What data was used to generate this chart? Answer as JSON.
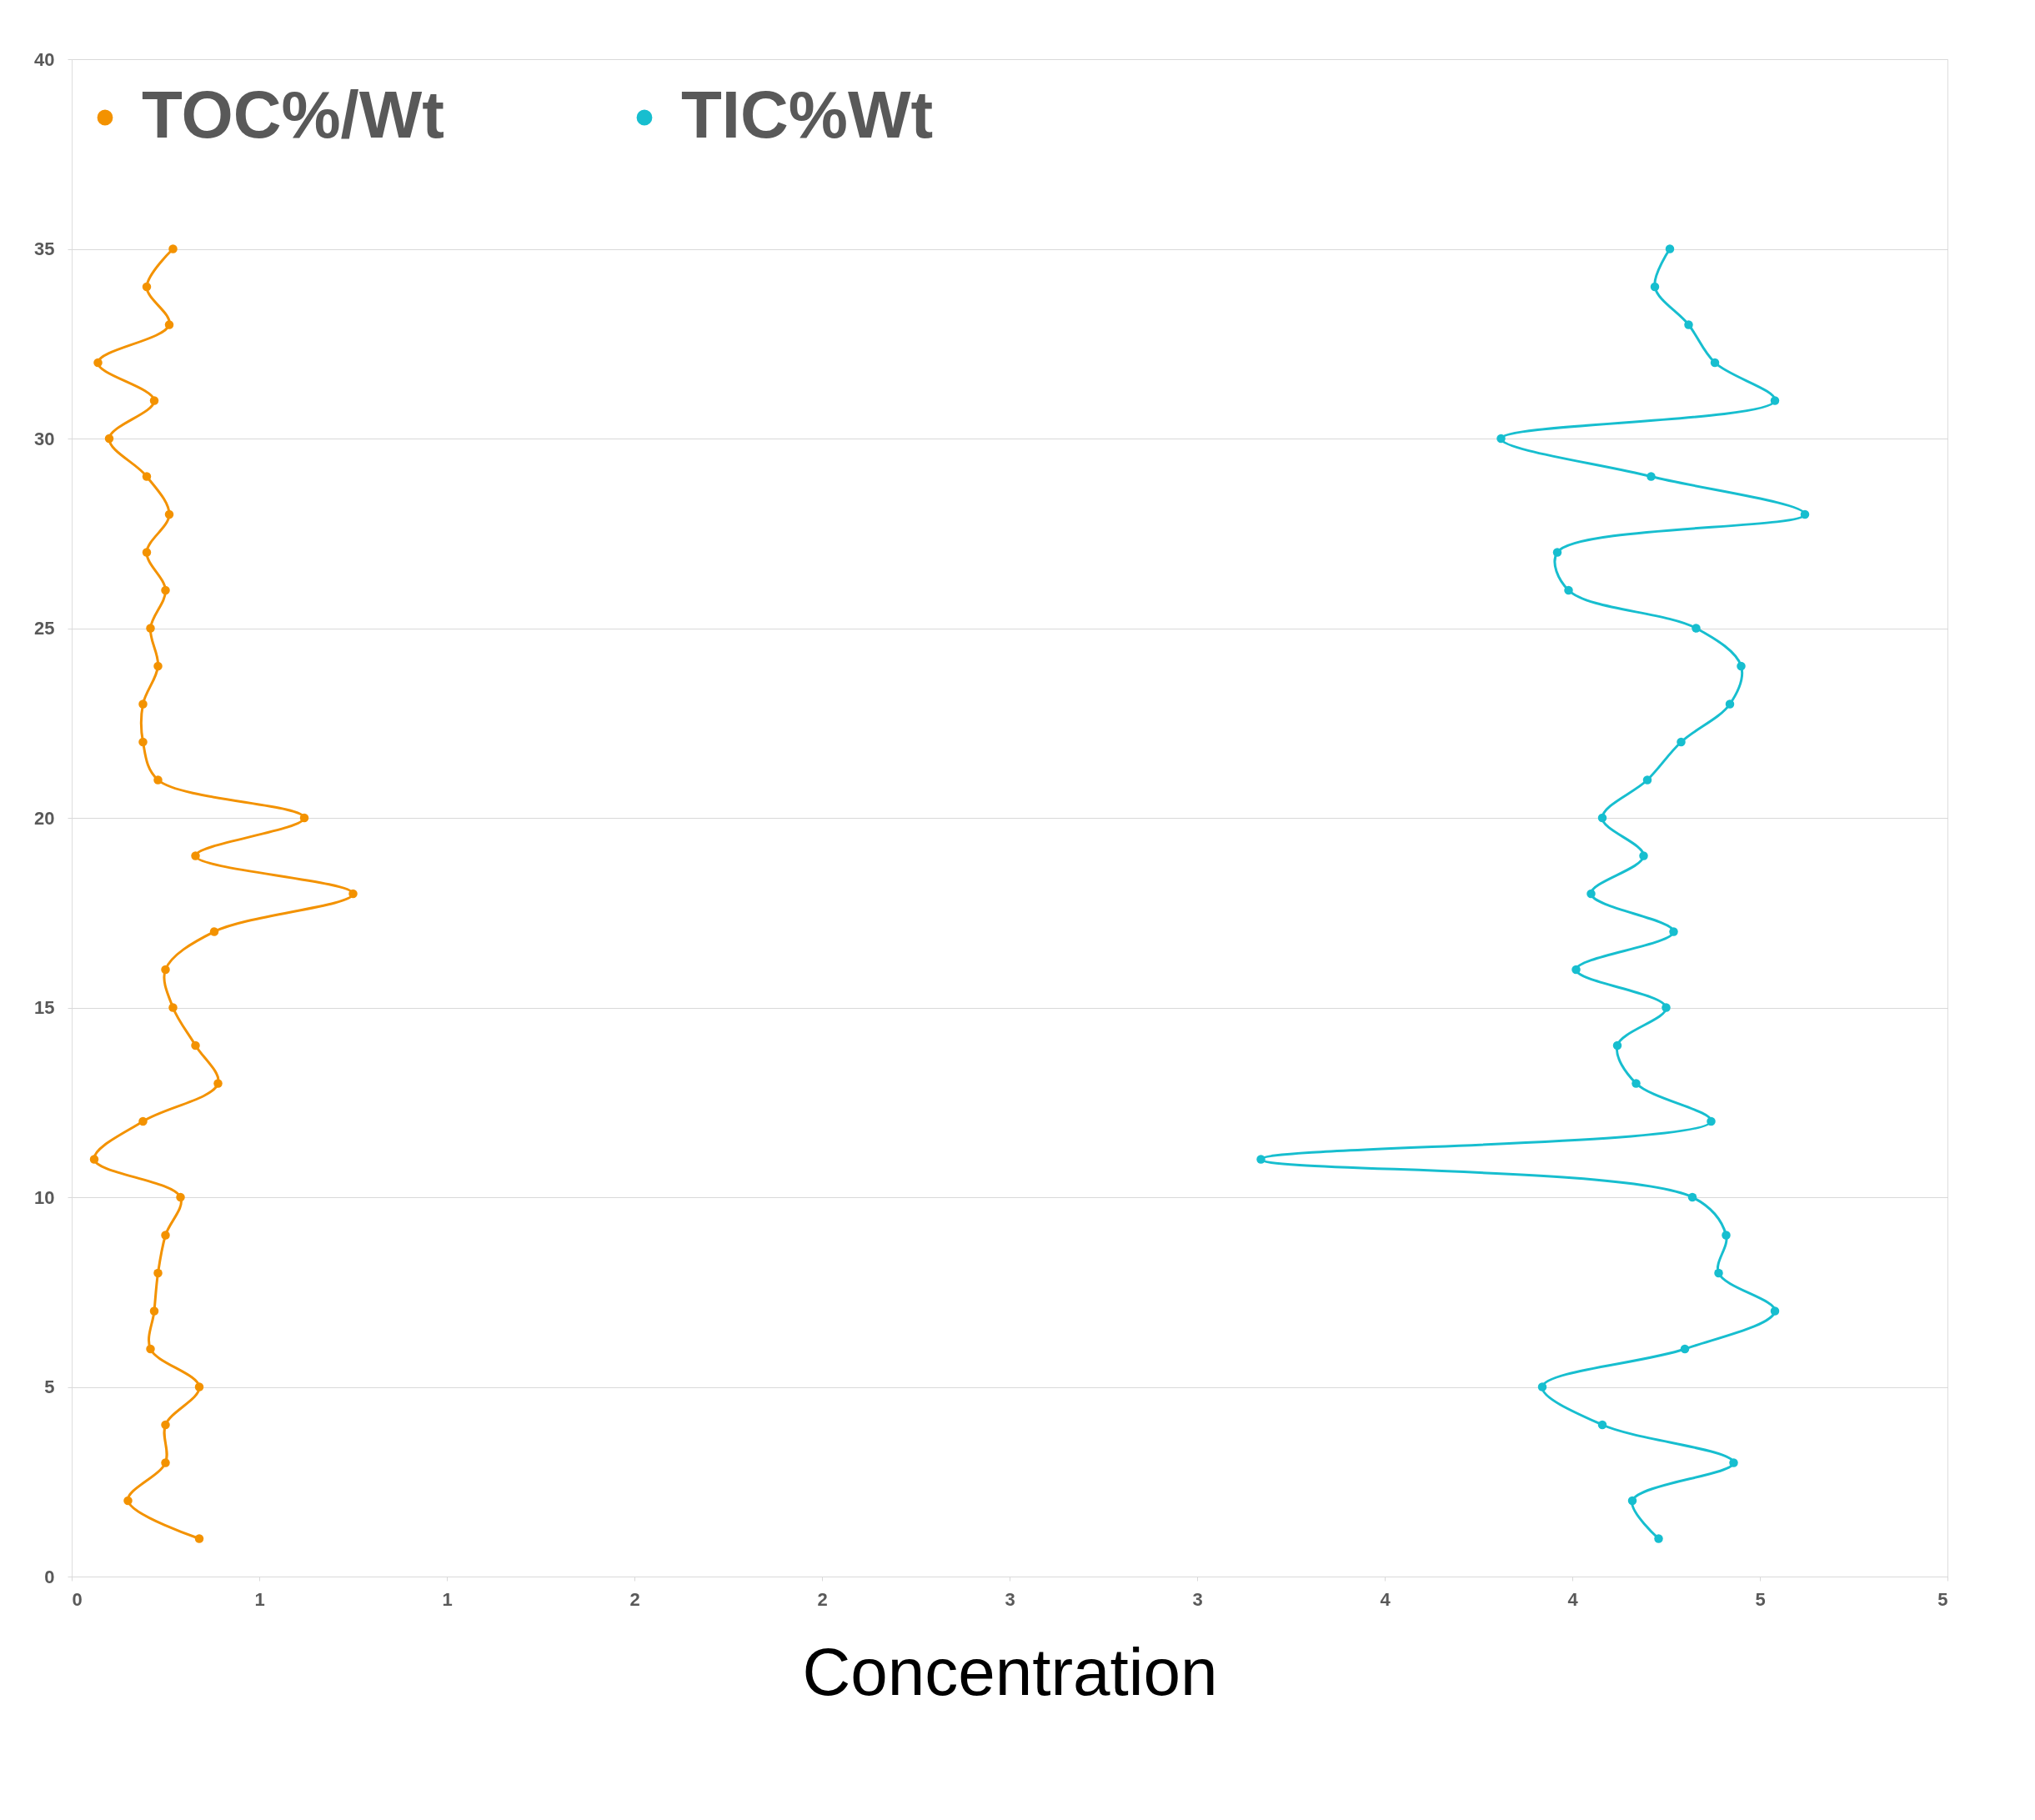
{
  "chart_data": {
    "type": "line",
    "orientation": "horizontal",
    "xlabel": "Concentration",
    "legend": "top",
    "grid": "y",
    "marker": "circle",
    "line_style": "solid",
    "xlim": [
      0,
      5
    ],
    "xticks": [
      0,
      {
        "value": 0.5,
        "label": "1"
      },
      1,
      {
        "value": 1.5,
        "label": "2"
      },
      2,
      {
        "value": 2.5,
        "label": "3"
      },
      3,
      {
        "value": 3.5,
        "label": "4"
      },
      4,
      {
        "value": 4.5,
        "label": "5"
      },
      5
    ],
    "ylim": [
      0,
      40
    ],
    "yticks": [
      0,
      5,
      10,
      15,
      20,
      25,
      30,
      35,
      40
    ],
    "x": [
      1,
      2,
      3,
      4,
      5,
      6,
      7,
      8,
      9,
      10,
      11,
      12,
      13,
      14,
      15,
      16,
      17,
      18,
      19,
      20,
      21,
      22,
      23,
      24,
      25,
      26,
      27,
      28,
      29,
      30,
      31,
      32,
      33,
      34,
      35
    ],
    "series": [
      {
        "name": "TOC%/Wt",
        "color": "#f39200",
        "values": [
          0.34,
          0.15,
          0.25,
          0.25,
          0.34,
          0.21,
          0.22,
          0.23,
          0.25,
          0.29,
          0.06,
          0.19,
          0.39,
          0.33,
          0.27,
          0.25,
          0.38,
          0.75,
          0.33,
          0.62,
          0.23,
          0.19,
          0.19,
          0.23,
          0.21,
          0.25,
          0.2,
          0.26,
          0.2,
          0.1,
          0.22,
          0.07,
          0.26,
          0.2,
          0.27
        ]
      },
      {
        "name": "TIC%Wt",
        "color": "#17becf",
        "values": [
          4.23,
          4.16,
          4.43,
          4.08,
          3.92,
          4.3,
          4.54,
          4.39,
          4.41,
          4.32,
          3.17,
          4.37,
          4.17,
          4.12,
          4.25,
          4.01,
          4.27,
          4.05,
          4.19,
          4.08,
          4.2,
          4.29,
          4.42,
          4.45,
          4.33,
          3.99,
          3.96,
          4.62,
          4.21,
          3.81,
          4.54,
          4.38,
          4.31,
          4.22,
          4.26
        ]
      }
    ]
  }
}
